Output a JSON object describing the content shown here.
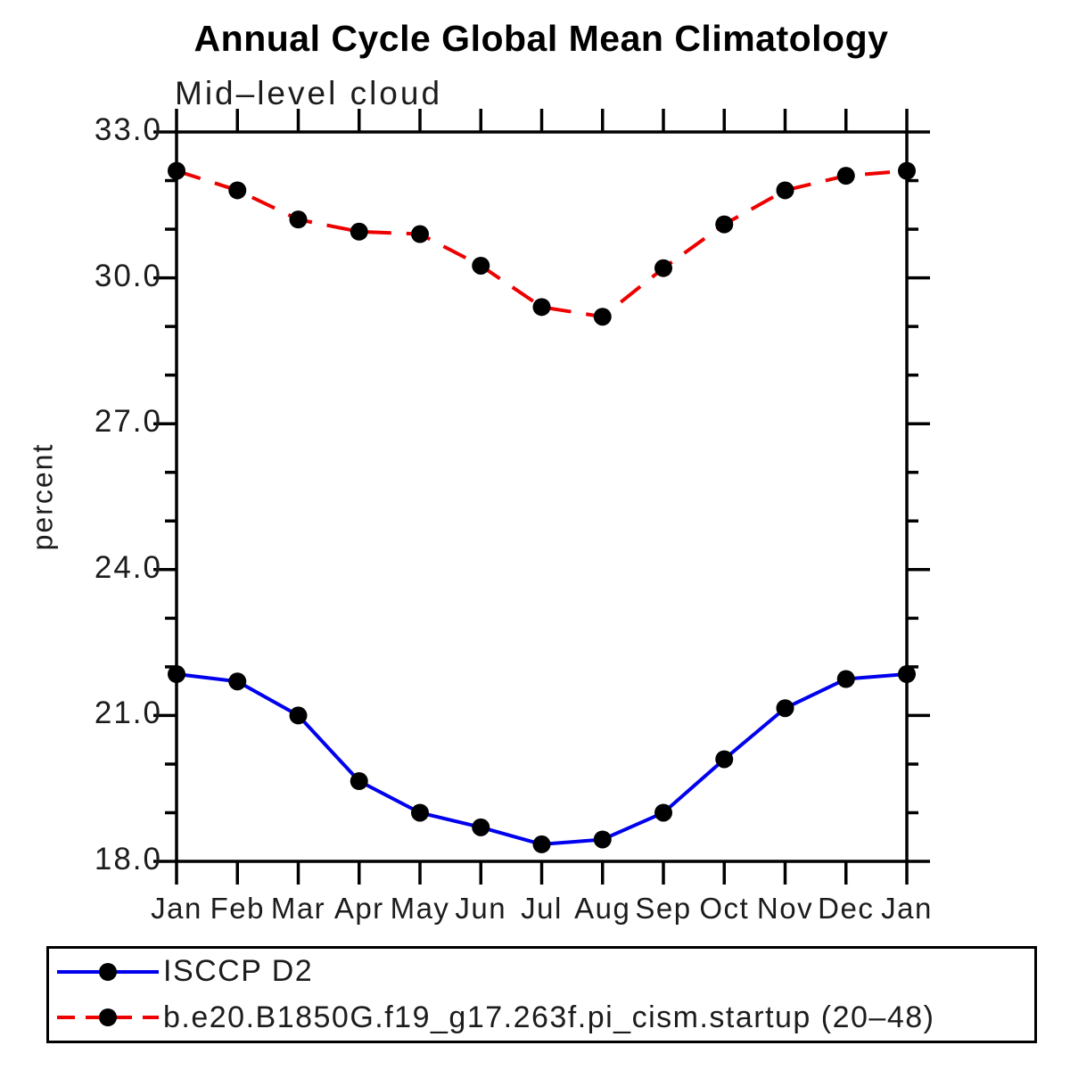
{
  "chart_data": {
    "type": "line",
    "title": "Annual Cycle Global Mean Climatology",
    "subtitle": "Mid–level cloud",
    "ylabel": "percent",
    "xlabel": "",
    "categories": [
      "Jan",
      "Feb",
      "Mar",
      "Apr",
      "May",
      "Jun",
      "Jul",
      "Aug",
      "Sep",
      "Oct",
      "Nov",
      "Dec",
      "Jan"
    ],
    "series": [
      {
        "name": "ISCCP D2",
        "color": "#0000ee",
        "line_style": "solid",
        "marker": "filled-circle",
        "marker_color": "#000000",
        "values": [
          21.85,
          21.7,
          21.0,
          19.65,
          19.0,
          18.7,
          18.35,
          18.45,
          19.0,
          20.1,
          21.15,
          21.75,
          21.85
        ]
      },
      {
        "name": "b.e20.B1850G.f19_g17.263f.pi_cism.startup (20–48)",
        "color": "#ee0000",
        "line_style": "dashed",
        "marker": "filled-circle",
        "marker_color": "#000000",
        "values": [
          32.2,
          31.8,
          31.2,
          30.95,
          30.9,
          30.25,
          29.4,
          29.2,
          30.2,
          31.1,
          31.8,
          32.1,
          32.2
        ]
      }
    ],
    "ylim": [
      18,
      33
    ],
    "yticks_major": [
      18,
      21,
      24,
      27,
      30,
      33
    ],
    "ytick_labels": [
      "18.0",
      "21.0",
      "24.0",
      "27.0",
      "30.0",
      "33.0"
    ],
    "yticks_minor_step": 1,
    "grid": false,
    "legend_position": "bottom-left-box",
    "axis_color": "#000000",
    "background_color": "#ffffff"
  }
}
